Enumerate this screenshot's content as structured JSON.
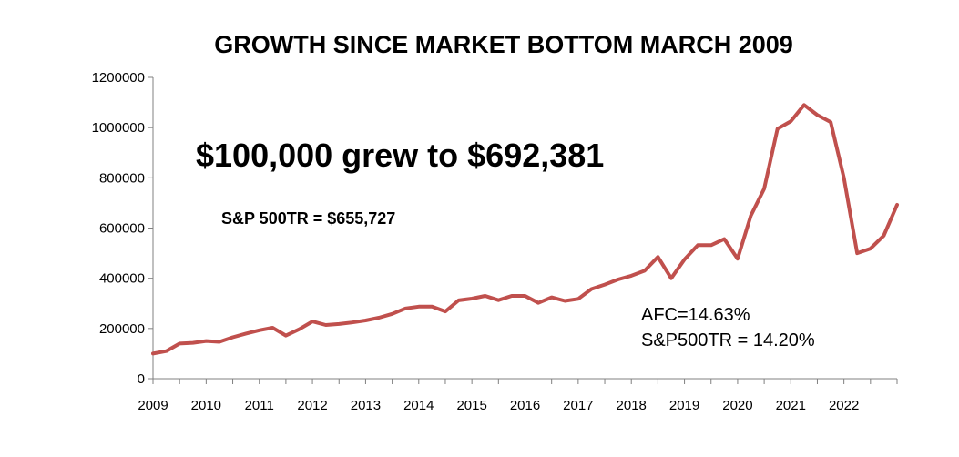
{
  "chart_data": {
    "type": "line",
    "title": "GROWTH SINCE MARKET BOTTOM MARCH 2009",
    "xlabel": "",
    "ylabel": "",
    "ylim": [
      0,
      1200000
    ],
    "yticks": [
      "0",
      "200000",
      "400000",
      "600000",
      "800000",
      "1000000",
      "1200000"
    ],
    "xticks": [
      "2009",
      "2010",
      "2011",
      "2012",
      "2013",
      "2014",
      "2015",
      "2016",
      "2017",
      "2018",
      "2019",
      "2020",
      "2021",
      "2022"
    ],
    "grid": false,
    "line_color": "#c0504d",
    "series": [
      {
        "x": [
          2009.0,
          2009.25,
          2009.5,
          2009.75,
          2010.0,
          2010.25,
          2010.5,
          2010.75,
          2011.0,
          2011.25,
          2011.5,
          2011.75,
          2012.0,
          2012.25,
          2012.5,
          2012.75,
          2013.0,
          2013.25,
          2013.5,
          2013.75,
          2014.0,
          2014.25,
          2014.5,
          2014.75,
          2015.0,
          2015.25,
          2015.5,
          2015.75,
          2016.0,
          2016.25,
          2016.5,
          2016.75,
          2017.0,
          2017.25,
          2017.5,
          2017.75,
          2018.0,
          2018.25,
          2018.5,
          2018.75,
          2019.0,
          2019.25,
          2019.5,
          2019.75,
          2020.0,
          2020.25,
          2020.5,
          2020.75,
          2021.0,
          2021.25,
          2021.5,
          2021.75,
          2022.0,
          2022.25,
          2022.5,
          2022.75,
          2023.0
        ],
        "values": [
          100000,
          110000,
          140000,
          143000,
          150000,
          147000,
          165000,
          180000,
          193000,
          203000,
          172000,
          197000,
          228000,
          214000,
          218000,
          224000,
          232000,
          243000,
          258000,
          280000,
          287000,
          287000,
          268000,
          312000,
          319000,
          330000,
          313000,
          330000,
          330000,
          302000,
          324000,
          310000,
          318000,
          357000,
          375000,
          395000,
          410000,
          430000,
          485000,
          400000,
          475000,
          532000,
          532000,
          556000,
          478000,
          650000,
          757000,
          995000,
          1025000,
          1090000,
          1050000,
          1022000,
          800000,
          500000,
          518000,
          570000,
          692381
        ]
      }
    ],
    "annotations": {
      "headline": "$100,000 grew to $692,381",
      "benchmark": "S&P 500TR = $655,727",
      "afc_rate": "AFC=14.63%",
      "sp_rate": "S&P500TR = 14.20%"
    }
  }
}
